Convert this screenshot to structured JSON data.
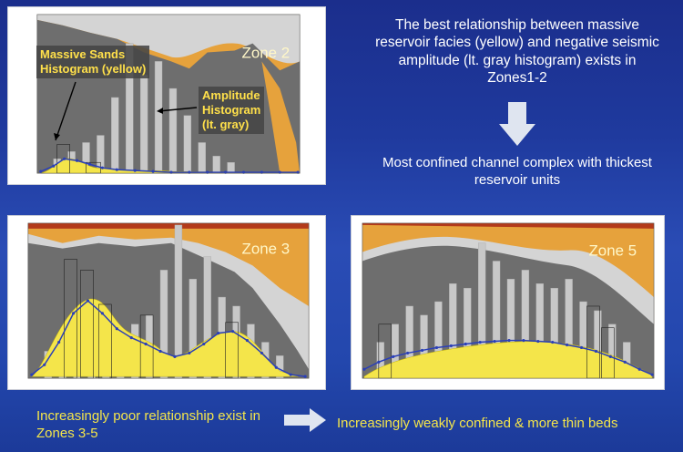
{
  "panels": {
    "zone2": {
      "label": "Zone 2"
    },
    "zone3": {
      "label": "Zone 3"
    },
    "zone5": {
      "label": "Zone 5"
    }
  },
  "callouts": {
    "massive_sands": "Massive Sands\nHistogram (yellow)",
    "amplitude": "Amplitude\nHistogram\n(lt. gray)"
  },
  "text": {
    "best_relationship": "The best relationship between massive reservoir facies (yellow) and negative seismic amplitude (lt. gray histogram) exists in Zones1-2",
    "most_confined": "Most confined channel complex with thickest reservoir units",
    "increasingly_poor": "Increasingly poor relationship exist in Zones 3-5",
    "weakly_confined": "Increasingly weakly confined & more thin beds"
  },
  "colors": {
    "orange": "#e6a23c",
    "dark_gray": "#6e6e6e",
    "light_gray": "#c4c4c4",
    "yellow": "#f4e54a",
    "blue_line": "#2a3fb8",
    "background": "#1f3a9e"
  }
}
